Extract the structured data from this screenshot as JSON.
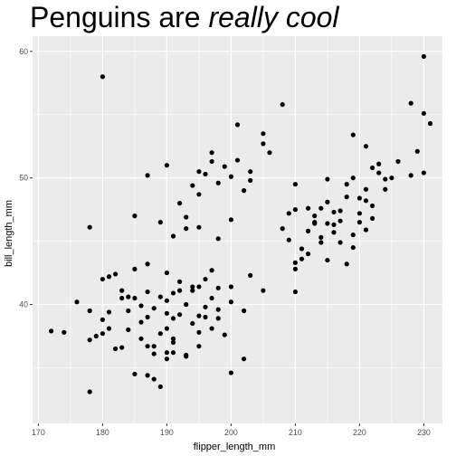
{
  "chart_data": {
    "type": "scatter",
    "title_plain": "Penguins are ",
    "title_italic": "really cool",
    "xlabel": "flipper_length_mm",
    "ylabel": "bill_length_mm",
    "xlim": [
      169.1,
      232.9
    ],
    "ylim": [
      30.6,
      61.2
    ],
    "xticks": [
      170,
      180,
      190,
      200,
      210,
      220,
      230
    ],
    "yticks": [
      40,
      50,
      60
    ],
    "grid": true,
    "background": "#EBEBEB",
    "gridline_color": "#FFFFFF",
    "point_color": "#000000",
    "points": [
      [
        172,
        37.9
      ],
      [
        174,
        37.8
      ],
      [
        176,
        40.2
      ],
      [
        178,
        46.1
      ],
      [
        178,
        39.5
      ],
      [
        178,
        37.2
      ],
      [
        178,
        33.1
      ],
      [
        179,
        37.5
      ],
      [
        180,
        38.8
      ],
      [
        180,
        37.7
      ],
      [
        181,
        42.2
      ],
      [
        181,
        38.1
      ],
      [
        182,
        42.4
      ],
      [
        182,
        36.5
      ],
      [
        183,
        41.1
      ],
      [
        183,
        36.6
      ],
      [
        184,
        40.6
      ],
      [
        184,
        38.0
      ],
      [
        185,
        47.0
      ],
      [
        185,
        40.5
      ],
      [
        185,
        34.5
      ],
      [
        186,
        37.3
      ],
      [
        186,
        38.6
      ],
      [
        187,
        41.0
      ],
      [
        187,
        39.0
      ],
      [
        187,
        36.7
      ],
      [
        188,
        39.7
      ],
      [
        188,
        36.1
      ],
      [
        188,
        34.1
      ],
      [
        189,
        40.6
      ],
      [
        189,
        37.7
      ],
      [
        190,
        42.5
      ],
      [
        190,
        40.3
      ],
      [
        190,
        38.1
      ],
      [
        190,
        35.7
      ],
      [
        191,
        40.9
      ],
      [
        191,
        38.9
      ],
      [
        191,
        37.0
      ],
      [
        192,
        41.8
      ],
      [
        192,
        39.2
      ],
      [
        193,
        40.0
      ],
      [
        193,
        36.0
      ],
      [
        194,
        41.1
      ],
      [
        194,
        38.5
      ],
      [
        195,
        41.4
      ],
      [
        195,
        39.1
      ],
      [
        195,
        36.7
      ],
      [
        196,
        42.0
      ],
      [
        196,
        39.8
      ],
      [
        197,
        42.7
      ],
      [
        197,
        40.5
      ],
      [
        198,
        41.3
      ],
      [
        198,
        39.6
      ],
      [
        199,
        37.6
      ],
      [
        200,
        40.2
      ],
      [
        200,
        41.4
      ],
      [
        202,
        39.5
      ],
      [
        203,
        42.3
      ],
      [
        205,
        41.1
      ],
      [
        210,
        41.0
      ],
      [
        180,
        58.0
      ],
      [
        181,
        39.4
      ],
      [
        183,
        40.5
      ],
      [
        187,
        43.2
      ],
      [
        189,
        46.5
      ],
      [
        190,
        36.2
      ],
      [
        192,
        41.1
      ],
      [
        196,
        39.0
      ],
      [
        184,
        39.5
      ],
      [
        186,
        39.9
      ],
      [
        188,
        36.7
      ],
      [
        190,
        39.3
      ],
      [
        193,
        35.9
      ],
      [
        198,
        38.9
      ],
      [
        200,
        34.6
      ],
      [
        202,
        35.7
      ],
      [
        180,
        42.0
      ],
      [
        185,
        42.8
      ],
      [
        191,
        37.3
      ],
      [
        194,
        41.4
      ],
      [
        187,
        34.4
      ],
      [
        189,
        33.5
      ],
      [
        191,
        36.2
      ],
      [
        195,
        37.8
      ],
      [
        197,
        38.1
      ],
      [
        187,
        50.2
      ],
      [
        190,
        51.0
      ],
      [
        192,
        48.0
      ],
      [
        193,
        46.0
      ],
      [
        194,
        49.4
      ],
      [
        195,
        50.5
      ],
      [
        196,
        50.3
      ],
      [
        197,
        52.0
      ],
      [
        198,
        49.6
      ],
      [
        199,
        50.9
      ],
      [
        200,
        50.1
      ],
      [
        201,
        51.4
      ],
      [
        202,
        49.0
      ],
      [
        203,
        50.5
      ],
      [
        205,
        52.7
      ],
      [
        208,
        55.8
      ],
      [
        210,
        49.5
      ],
      [
        191,
        45.4
      ],
      [
        193,
        46.9
      ],
      [
        195,
        46.1
      ],
      [
        195,
        48.7
      ],
      [
        197,
        51.3
      ],
      [
        198,
        45.2
      ],
      [
        200,
        46.7
      ],
      [
        201,
        54.2
      ],
      [
        203,
        49.8
      ],
      [
        205,
        53.5
      ],
      [
        206,
        52.0
      ],
      [
        210,
        47.5
      ],
      [
        212,
        47.6
      ],
      [
        213,
        46.5
      ],
      [
        214,
        45.3
      ],
      [
        215,
        48.1
      ],
      [
        216,
        47.3
      ],
      [
        217,
        46.6
      ],
      [
        218,
        49.5
      ],
      [
        219,
        50.0
      ],
      [
        220,
        48.4
      ],
      [
        221,
        49.1
      ],
      [
        222,
        46.8
      ],
      [
        223,
        50.4
      ],
      [
        224,
        49.9
      ],
      [
        225,
        50.0
      ],
      [
        226,
        51.3
      ],
      [
        228,
        50.2
      ],
      [
        229,
        52.1
      ],
      [
        230,
        50.4
      ],
      [
        231,
        54.3
      ],
      [
        230,
        59.6
      ],
      [
        230,
        55.1
      ],
      [
        228,
        55.9
      ],
      [
        221,
        52.5
      ],
      [
        219,
        53.4
      ],
      [
        209,
        47.2
      ],
      [
        210,
        43.3
      ],
      [
        211,
        44.4
      ],
      [
        212,
        45.8
      ],
      [
        213,
        46.4
      ],
      [
        214,
        44.9
      ],
      [
        215,
        43.5
      ],
      [
        216,
        45.7
      ],
      [
        217,
        47.4
      ],
      [
        218,
        43.2
      ],
      [
        219,
        44.5
      ],
      [
        220,
        46.5
      ],
      [
        221,
        45.9
      ],
      [
        222,
        47.8
      ],
      [
        210,
        42.8
      ],
      [
        212,
        44.0
      ],
      [
        214,
        47.6
      ],
      [
        216,
        46.3
      ],
      [
        218,
        48.5
      ],
      [
        220,
        47.2
      ],
      [
        222,
        50.8
      ],
      [
        224,
        49.1
      ],
      [
        208,
        46.0
      ],
      [
        211,
        43.6
      ],
      [
        213,
        47.0
      ],
      [
        215,
        49.9
      ],
      [
        217,
        44.9
      ],
      [
        219,
        45.5
      ],
      [
        221,
        48.2
      ],
      [
        223,
        51.1
      ],
      [
        209,
        45.1
      ],
      [
        215,
        46.4
      ]
    ]
  }
}
